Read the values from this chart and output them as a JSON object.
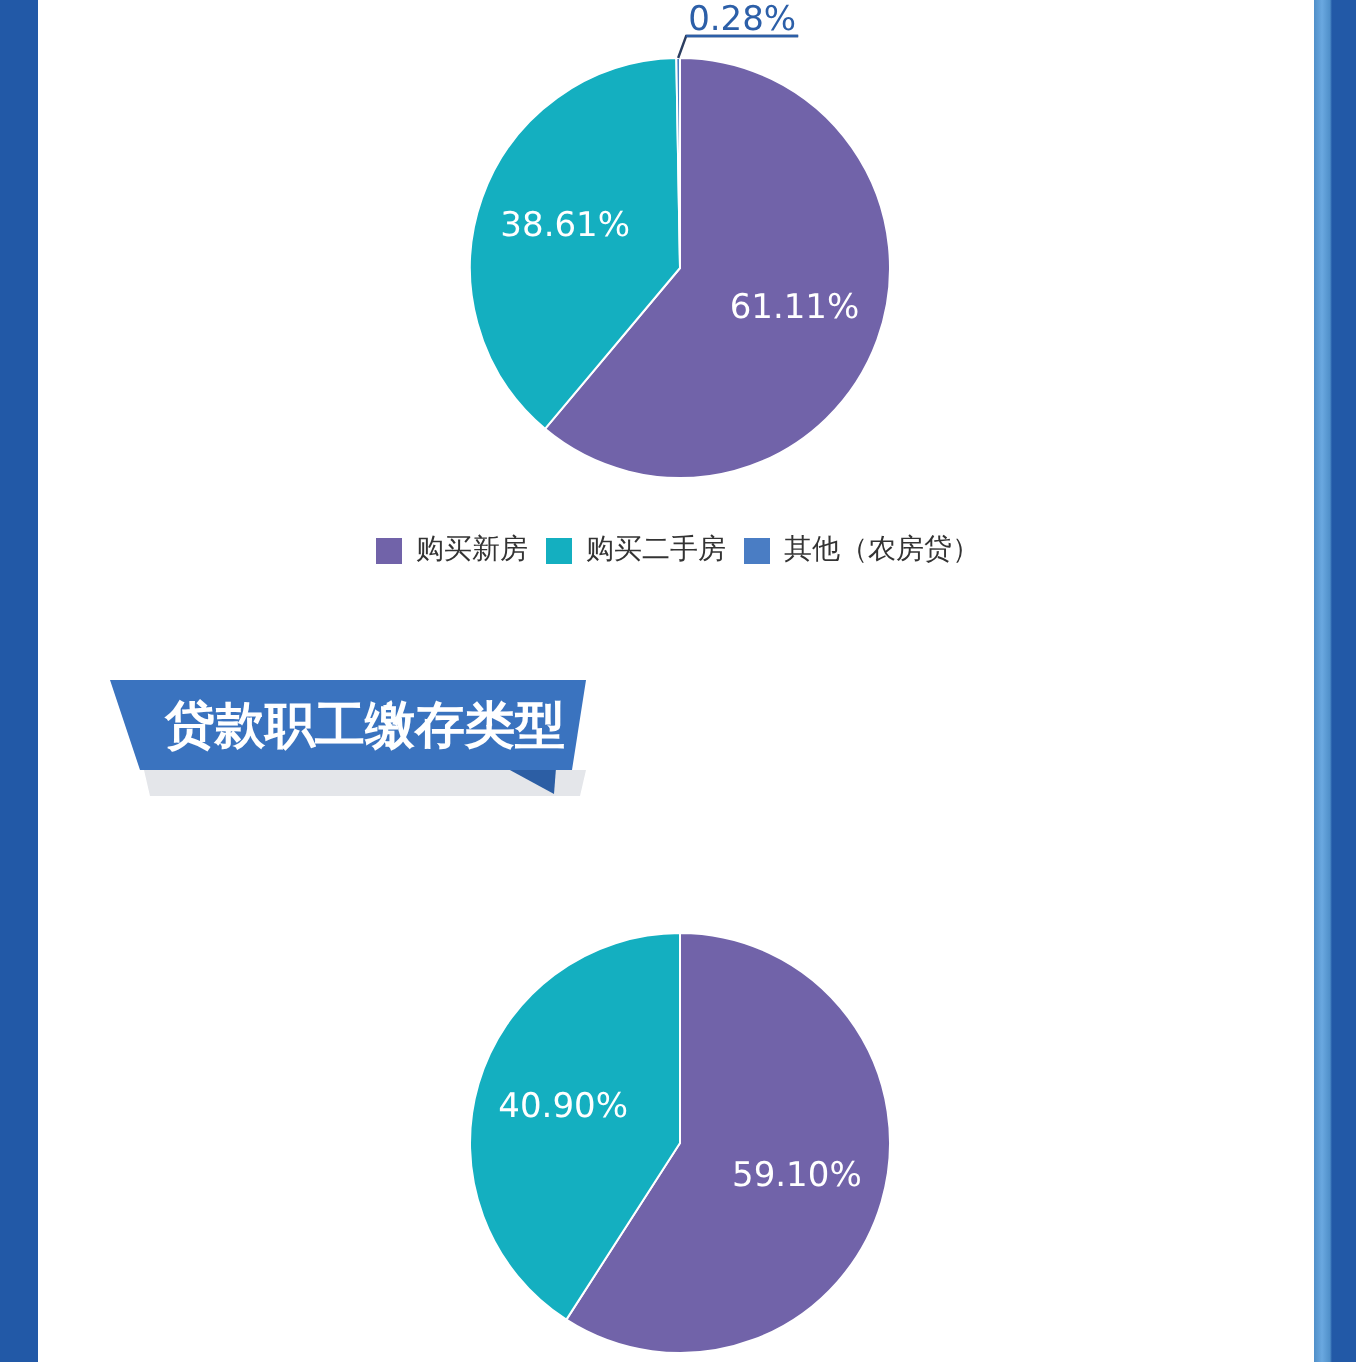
{
  "chart_data": [
    {
      "type": "pie",
      "categories": [
        "购买新房",
        "购买二手房",
        "其他（农房贷）"
      ],
      "values": [
        61.11,
        38.61,
        0.28
      ],
      "colors": [
        "#7163a9",
        "#14afc0",
        "#4a7dc4"
      ],
      "value_labels": [
        "61.11%",
        "38.61%",
        "0.28%"
      ],
      "legend": "bottom"
    },
    {
      "type": "pie",
      "title": "贷款职工缴存类型",
      "categories": [
        null,
        null
      ],
      "values": [
        59.1,
        40.9
      ],
      "colors": [
        "#7163a9",
        "#14afc0"
      ],
      "value_labels": [
        "59.10%",
        "40.90%"
      ]
    }
  ]
}
